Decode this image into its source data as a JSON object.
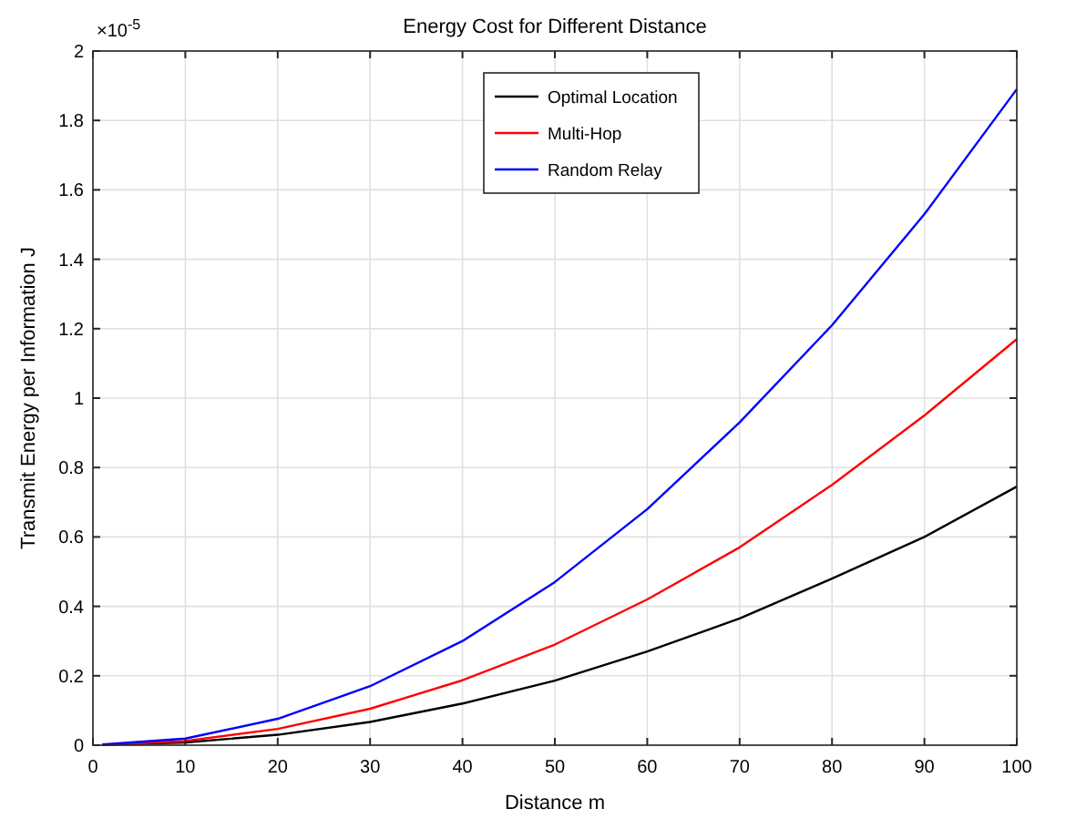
{
  "chart_data": {
    "type": "line",
    "title": "Energy Cost for Different Distance",
    "xlabel": "Distance m",
    "ylabel": "Transmit Energy per Information J",
    "annotations": [
      "×10$^{-5}$"
    ],
    "x": [
      1,
      10,
      20,
      30,
      40,
      50,
      60,
      70,
      80,
      90,
      100
    ],
    "series": [
      {
        "name": "Optimal Location",
        "color": "#000000",
        "values": [
          0.001,
          0.008,
          0.03,
          0.067,
          0.12,
          0.186,
          0.27,
          0.365,
          0.48,
          0.6,
          0.745
        ]
      },
      {
        "name": "Multi-Hop",
        "color": "#ff0000",
        "values": [
          0.001,
          0.012,
          0.047,
          0.105,
          0.187,
          0.29,
          0.42,
          0.57,
          0.75,
          0.95,
          1.17
        ]
      },
      {
        "name": "Random Relay",
        "color": "#0000ff",
        "values": [
          0.002,
          0.019,
          0.076,
          0.17,
          0.3,
          0.47,
          0.68,
          0.93,
          1.21,
          1.53,
          1.89
        ]
      }
    ],
    "xlim": [
      0,
      100
    ],
    "xticks": [
      0,
      10,
      20,
      30,
      40,
      50,
      60,
      70,
      80,
      90,
      100
    ],
    "ylim": [
      0,
      2
    ],
    "yticks": [
      0,
      0.2,
      0.4,
      0.6,
      0.8,
      1,
      1.2,
      1.4,
      1.6,
      1.8,
      2
    ],
    "grid": true,
    "legend": "top",
    "marker": "none",
    "line_style": "solid"
  }
}
